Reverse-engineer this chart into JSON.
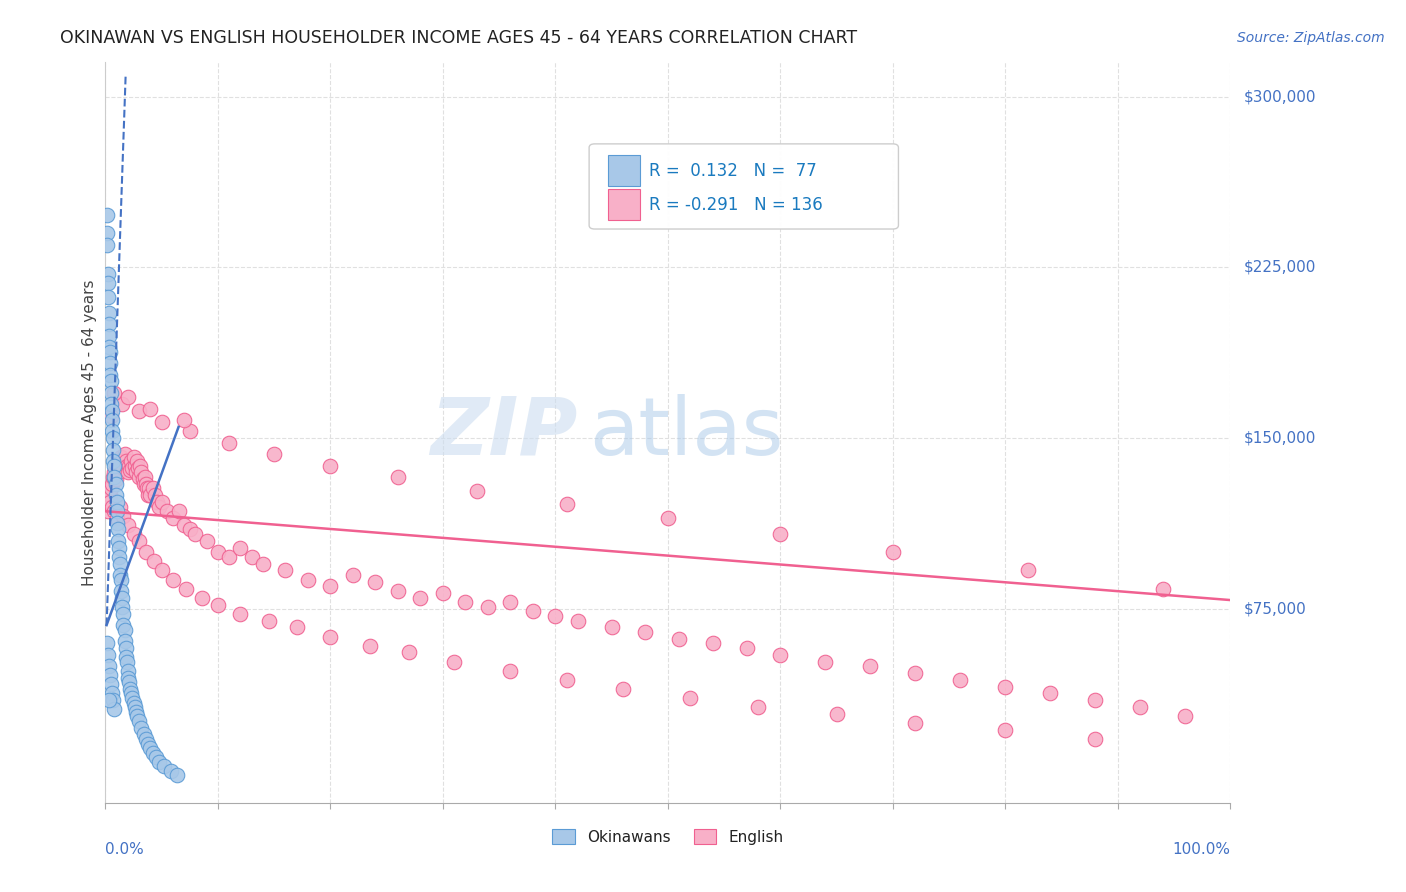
{
  "title": "OKINAWAN VS ENGLISH HOUSEHOLDER INCOME AGES 45 - 64 YEARS CORRELATION CHART",
  "source": "Source: ZipAtlas.com",
  "ylabel": "Householder Income Ages 45 - 64 years",
  "y_tick_labels": [
    "$75,000",
    "$150,000",
    "$225,000",
    "$300,000"
  ],
  "y_tick_values": [
    75000,
    150000,
    225000,
    300000
  ],
  "y_min": -10000,
  "y_max": 315000,
  "x_min": 0.0,
  "x_max": 1.0,
  "watermark_zip": "ZIP",
  "watermark_atlas": "atlas",
  "okinawan_color": "#a8c8e8",
  "english_color": "#f8b0c8",
  "okinawan_edge_color": "#5b9bd5",
  "english_edge_color": "#f06090",
  "okinawan_trend_color": "#4472c4",
  "english_trend_color": "#f06090",
  "title_color": "#222222",
  "ylabel_color": "#444444",
  "source_color": "#4472c4",
  "tick_label_color": "#4472c4",
  "x_label_color": "#4472c4",
  "grid_color": "#e0e0e0",
  "legend_text_color": "#222299",
  "legend_value_color": "#1a7abf",
  "okinawan_points_x": [
    0.001,
    0.001,
    0.001,
    0.002,
    0.002,
    0.002,
    0.003,
    0.003,
    0.003,
    0.003,
    0.004,
    0.004,
    0.004,
    0.005,
    0.005,
    0.005,
    0.006,
    0.006,
    0.006,
    0.007,
    0.007,
    0.007,
    0.008,
    0.008,
    0.009,
    0.009,
    0.01,
    0.01,
    0.01,
    0.011,
    0.011,
    0.012,
    0.012,
    0.013,
    0.013,
    0.014,
    0.014,
    0.015,
    0.015,
    0.016,
    0.016,
    0.017,
    0.017,
    0.018,
    0.018,
    0.019,
    0.02,
    0.02,
    0.021,
    0.022,
    0.023,
    0.024,
    0.025,
    0.026,
    0.027,
    0.028,
    0.03,
    0.032,
    0.034,
    0.036,
    0.038,
    0.04,
    0.042,
    0.045,
    0.048,
    0.052,
    0.058,
    0.064,
    0.001,
    0.002,
    0.003,
    0.004,
    0.005,
    0.006,
    0.007,
    0.008,
    0.003
  ],
  "okinawan_points_y": [
    248000,
    240000,
    235000,
    222000,
    218000,
    212000,
    205000,
    200000,
    195000,
    190000,
    188000,
    183000,
    178000,
    175000,
    170000,
    165000,
    162000,
    158000,
    153000,
    150000,
    145000,
    140000,
    138000,
    133000,
    130000,
    125000,
    122000,
    118000,
    113000,
    110000,
    105000,
    102000,
    98000,
    95000,
    90000,
    88000,
    83000,
    80000,
    76000,
    73000,
    68000,
    66000,
    61000,
    58000,
    54000,
    52000,
    48000,
    45000,
    43000,
    40000,
    38000,
    36000,
    34000,
    32000,
    30000,
    28000,
    26000,
    23000,
    20000,
    18000,
    16000,
    14000,
    12000,
    10000,
    8000,
    6000,
    4000,
    2000,
    60000,
    55000,
    50000,
    46000,
    42000,
    38000,
    35000,
    31000,
    35000
  ],
  "english_points_x": [
    0.002,
    0.003,
    0.004,
    0.005,
    0.006,
    0.007,
    0.008,
    0.009,
    0.01,
    0.011,
    0.012,
    0.013,
    0.014,
    0.015,
    0.016,
    0.017,
    0.018,
    0.019,
    0.02,
    0.021,
    0.022,
    0.023,
    0.024,
    0.025,
    0.026,
    0.027,
    0.028,
    0.029,
    0.03,
    0.031,
    0.032,
    0.033,
    0.034,
    0.035,
    0.036,
    0.037,
    0.038,
    0.039,
    0.04,
    0.042,
    0.044,
    0.046,
    0.048,
    0.05,
    0.055,
    0.06,
    0.065,
    0.07,
    0.075,
    0.08,
    0.09,
    0.1,
    0.11,
    0.12,
    0.13,
    0.14,
    0.16,
    0.18,
    0.2,
    0.22,
    0.24,
    0.26,
    0.28,
    0.3,
    0.32,
    0.34,
    0.36,
    0.38,
    0.4,
    0.42,
    0.45,
    0.48,
    0.51,
    0.54,
    0.57,
    0.6,
    0.64,
    0.68,
    0.72,
    0.76,
    0.8,
    0.84,
    0.88,
    0.92,
    0.96,
    0.004,
    0.006,
    0.008,
    0.01,
    0.013,
    0.016,
    0.02,
    0.025,
    0.03,
    0.036,
    0.043,
    0.05,
    0.06,
    0.072,
    0.086,
    0.1,
    0.12,
    0.145,
    0.17,
    0.2,
    0.235,
    0.27,
    0.31,
    0.36,
    0.41,
    0.46,
    0.52,
    0.58,
    0.65,
    0.72,
    0.8,
    0.88,
    0.005,
    0.015,
    0.03,
    0.05,
    0.075,
    0.11,
    0.15,
    0.2,
    0.26,
    0.33,
    0.41,
    0.5,
    0.6,
    0.7,
    0.82,
    0.94,
    0.008,
    0.02,
    0.04,
    0.07
  ],
  "english_points_y": [
    118000,
    122000,
    125000,
    128000,
    130000,
    133000,
    135000,
    132000,
    138000,
    135000,
    140000,
    138000,
    142000,
    140000,
    137000,
    143000,
    140000,
    138000,
    135000,
    138000,
    136000,
    140000,
    137000,
    142000,
    138000,
    135000,
    140000,
    137000,
    133000,
    138000,
    135000,
    132000,
    130000,
    133000,
    130000,
    128000,
    125000,
    128000,
    125000,
    128000,
    125000,
    122000,
    120000,
    122000,
    118000,
    115000,
    118000,
    112000,
    110000,
    108000,
    105000,
    100000,
    98000,
    102000,
    98000,
    95000,
    92000,
    88000,
    85000,
    90000,
    87000,
    83000,
    80000,
    82000,
    78000,
    76000,
    78000,
    74000,
    72000,
    70000,
    67000,
    65000,
    62000,
    60000,
    58000,
    55000,
    52000,
    50000,
    47000,
    44000,
    41000,
    38000,
    35000,
    32000,
    28000,
    122000,
    120000,
    118000,
    115000,
    120000,
    116000,
    112000,
    108000,
    105000,
    100000,
    96000,
    92000,
    88000,
    84000,
    80000,
    77000,
    73000,
    70000,
    67000,
    63000,
    59000,
    56000,
    52000,
    48000,
    44000,
    40000,
    36000,
    32000,
    29000,
    25000,
    22000,
    18000,
    160000,
    165000,
    162000,
    157000,
    153000,
    148000,
    143000,
    138000,
    133000,
    127000,
    121000,
    115000,
    108000,
    100000,
    92000,
    84000,
    170000,
    168000,
    163000,
    158000
  ]
}
